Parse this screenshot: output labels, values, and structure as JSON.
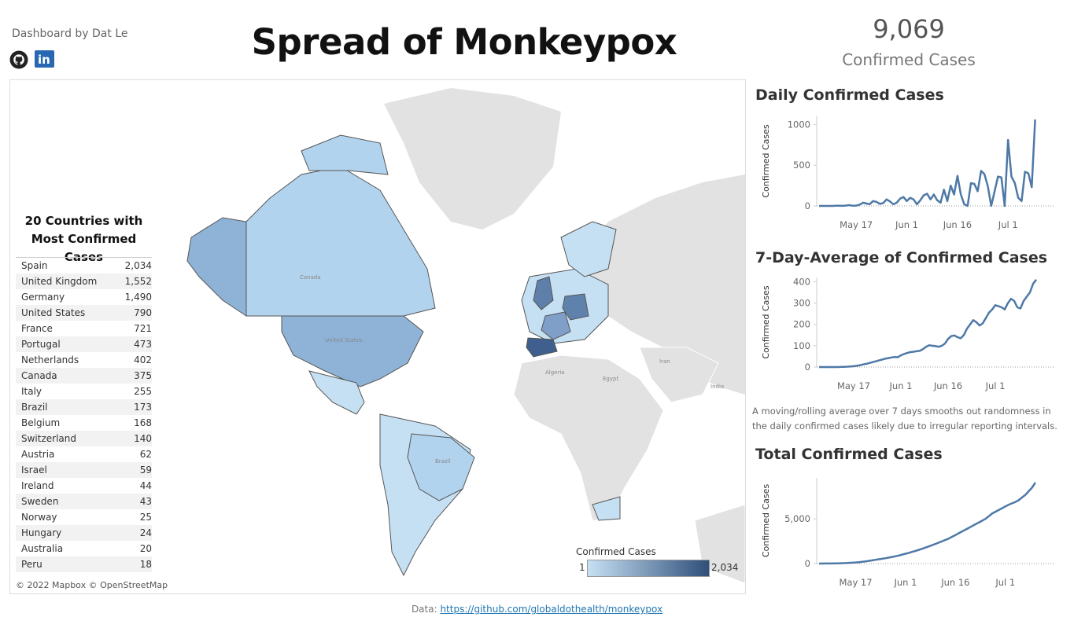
{
  "header": {
    "byline": "Dashboard by Dat Le",
    "title": "Spread of Monkeypox",
    "icons": [
      "github-icon",
      "linkedin-icon"
    ]
  },
  "kpi": {
    "value": "9,069",
    "label": "Confirmed Cases"
  },
  "map": {
    "table_title_line1": "20 Countries with",
    "table_title_line2": "Most Confirmed Cases",
    "legend_title": "Confirmed Cases",
    "legend_min": "1",
    "legend_max": "2,034",
    "attribution": "© 2022 Mapbox © OpenStreetMap",
    "place_labels": [
      "Canada",
      "United States",
      "Brazil",
      "Algeria",
      "Egypt",
      "Iran",
      "India"
    ],
    "colors": {
      "low": "#c6e0f3",
      "high": "#2f4f7a",
      "land": "#e2e2e2",
      "border": "#555555"
    }
  },
  "panels": {
    "daily_title": "Daily Confirmed Cases",
    "avg_title": "7-Day-Average of Confirmed Cases",
    "avg_note": "A moving/rolling average over 7 days smooths out randomness in the daily confirmed cases likely due to irregular reporting intervals.",
    "total_title": "Total Confirmed Cases"
  },
  "footer": {
    "prefix": "Data: ",
    "link": "https://github.com/globaldothealth/monkeypox"
  },
  "chart_data": [
    {
      "type": "table",
      "title": "20 Countries with Most Confirmed Cases",
      "rows": [
        [
          "Spain",
          "2,034"
        ],
        [
          "United Kingdom",
          "1,552"
        ],
        [
          "Germany",
          "1,490"
        ],
        [
          "United States",
          "790"
        ],
        [
          "France",
          "721"
        ],
        [
          "Portugal",
          "473"
        ],
        [
          "Netherlands",
          "402"
        ],
        [
          "Canada",
          "375"
        ],
        [
          "Italy",
          "255"
        ],
        [
          "Brazil",
          "173"
        ],
        [
          "Belgium",
          "168"
        ],
        [
          "Switzerland",
          "140"
        ],
        [
          "Austria",
          "62"
        ],
        [
          "Israel",
          "59"
        ],
        [
          "Ireland",
          "44"
        ],
        [
          "Sweden",
          "43"
        ],
        [
          "Norway",
          "25"
        ],
        [
          "Hungary",
          "24"
        ],
        [
          "Australia",
          "20"
        ],
        [
          "Peru",
          "18"
        ]
      ]
    },
    {
      "type": "line",
      "title": "Daily Confirmed Cases",
      "xlabel": "",
      "ylabel": "Confirmed Cases",
      "x_ticks": [
        "May 17",
        "Jun 1",
        "Jun 16",
        "Jul 1"
      ],
      "y_ticks": [
        "0",
        "500",
        "1000"
      ],
      "ylim": [
        0,
        1100
      ],
      "color": "#4e79a7",
      "x_start": "2022-05-06",
      "values": [
        0,
        0,
        0,
        0,
        0,
        2,
        3,
        1,
        5,
        10,
        2,
        4,
        15,
        40,
        30,
        20,
        60,
        50,
        25,
        35,
        80,
        55,
        20,
        40,
        90,
        110,
        60,
        100,
        80,
        20,
        70,
        130,
        150,
        80,
        140,
        70,
        40,
        200,
        60,
        250,
        140,
        370,
        140,
        20,
        0,
        280,
        270,
        180,
        430,
        390,
        240,
        0,
        180,
        360,
        350,
        0,
        810,
        360,
        280,
        100,
        60,
        420,
        400,
        230,
        1060
      ]
    },
    {
      "type": "line",
      "title": "7-Day-Average of Confirmed Cases",
      "xlabel": "",
      "ylabel": "Confirmed Cases",
      "x_ticks": [
        "May 17",
        "Jun 1",
        "Jun 16",
        "Jul 1"
      ],
      "y_ticks": [
        "0",
        "100",
        "200",
        "300",
        "400"
      ],
      "ylim": [
        0,
        420
      ],
      "color": "#4e79a7",
      "x_start": "2022-05-06",
      "values": [
        0,
        0,
        0,
        0,
        0,
        0,
        0,
        1,
        1,
        2,
        3,
        4,
        6,
        9,
        12,
        15,
        19,
        23,
        27,
        31,
        35,
        39,
        42,
        45,
        47,
        46,
        55,
        61,
        66,
        70,
        72,
        74,
        76,
        84,
        95,
        102,
        100,
        98,
        95,
        100,
        110,
        132,
        145,
        148,
        140,
        135,
        150,
        180,
        200,
        220,
        210,
        195,
        205,
        230,
        255,
        270,
        290,
        285,
        280,
        270,
        300,
        320,
        310,
        280,
        275,
        310,
        330,
        350,
        390,
        410
      ]
    },
    {
      "type": "line",
      "title": "Total Confirmed Cases",
      "xlabel": "",
      "ylabel": "Confirmed Cases",
      "x_ticks": [
        "May 17",
        "Jun 1",
        "Jun 16",
        "Jul 1"
      ],
      "y_ticks": [
        "0",
        "5,000"
      ],
      "ylim": [
        0,
        9600
      ],
      "color": "#4e79a7",
      "x_start": "2022-05-06",
      "values": [
        0,
        2,
        5,
        8,
        13,
        20,
        30,
        40,
        55,
        75,
        95,
        120,
        160,
        200,
        250,
        300,
        360,
        420,
        480,
        540,
        600,
        670,
        740,
        820,
        900,
        1000,
        1100,
        1200,
        1310,
        1420,
        1540,
        1660,
        1790,
        1920,
        2060,
        2200,
        2350,
        2500,
        2650,
        2800,
        3000,
        3200,
        3400,
        3600,
        3800,
        4000,
        4200,
        4400,
        4600,
        4800,
        5000,
        5300,
        5600,
        5800,
        6000,
        6200,
        6400,
        6600,
        6750,
        6900,
        7100,
        7400,
        7700,
        8100,
        8500,
        9069
      ]
    }
  ]
}
